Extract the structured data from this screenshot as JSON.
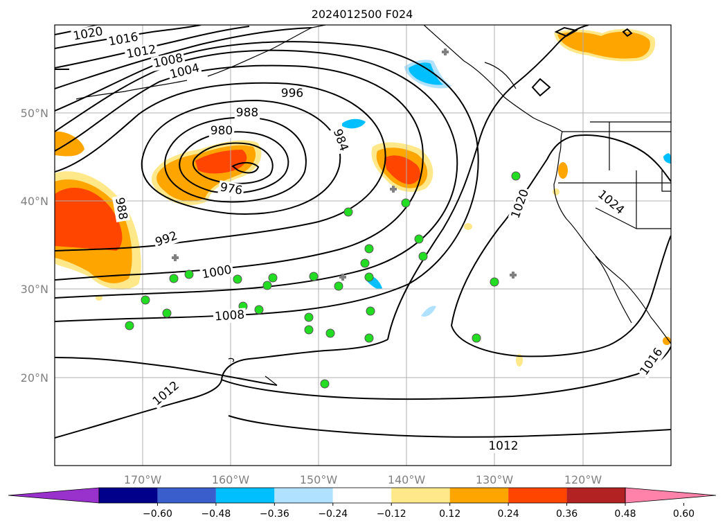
{
  "title": "2024012500 F024",
  "lon_ticks": [
    "170°W",
    "160°W",
    "150°W",
    "140°W",
    "130°W",
    "120°W"
  ],
  "lat_ticks": [
    "50°N",
    "40°N",
    "30°N",
    "20°N"
  ],
  "colorbar": {
    "colors": [
      "#9932cc",
      "#00008b",
      "#3a5fcd",
      "#00bfff",
      "#b0e2ff",
      "#ffffff",
      "#ffe88a",
      "#ffa500",
      "#ff4500",
      "#b22222",
      "#ff82ab"
    ],
    "tick_labels": [
      "−0.60",
      "−0.48",
      "−0.36",
      "−0.24",
      "−0.12",
      "0.12",
      "0.24",
      "0.36",
      "0.48",
      "0.60"
    ]
  },
  "contour_labels": [
    "1020",
    "1016",
    "1012",
    "1008",
    "1004",
    "996",
    "988",
    "980",
    "984",
    "976",
    "988",
    "992",
    "1000",
    "1008",
    "1012",
    "1020",
    "1024",
    "1016",
    "1012"
  ],
  "colors": {
    "grid": "#b0b0b0",
    "contour": "#000000",
    "station": "#22dd22"
  }
}
